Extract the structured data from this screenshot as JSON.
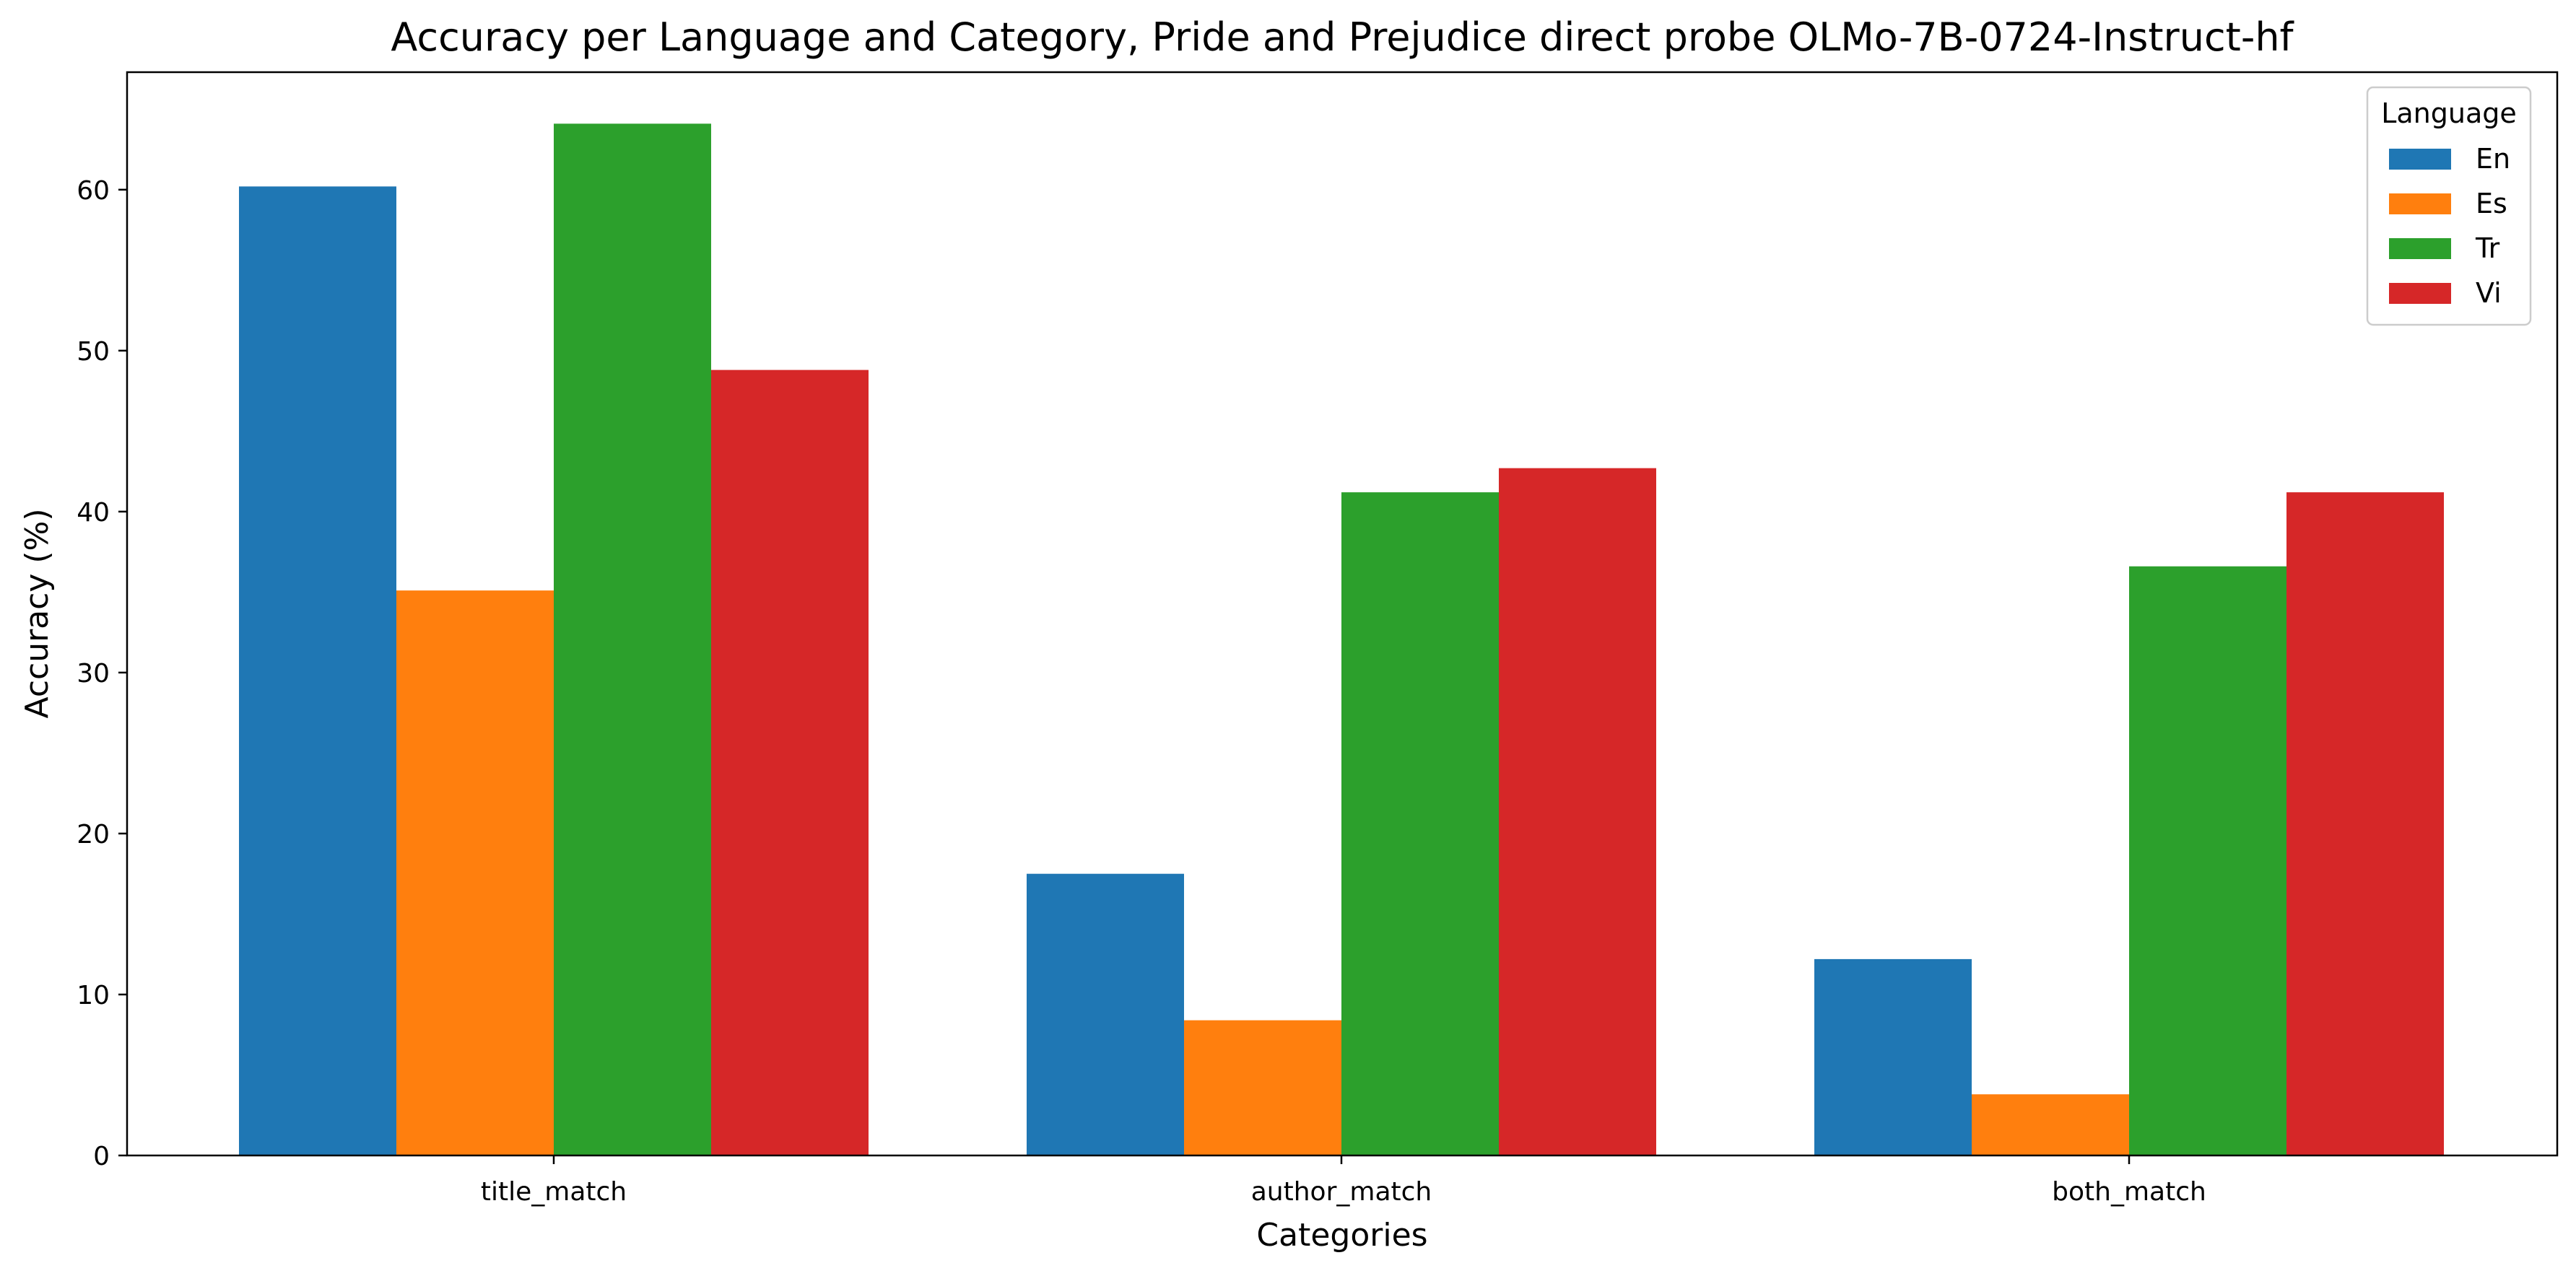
{
  "chart_data": {
    "type": "bar",
    "title": "Accuracy per Language and Category, Pride and Prejudice direct probe OLMo-7B-0724-Instruct-hf",
    "xlabel": "Categories",
    "ylabel": "Accuracy (%)",
    "categories": [
      "title_match",
      "author_match",
      "both_match"
    ],
    "ylim": [
      0,
      67.3
    ],
    "yticks": [
      0,
      10,
      20,
      30,
      40,
      50,
      60
    ],
    "grid": false,
    "legend": {
      "title": "Language",
      "position": "top-right"
    },
    "series": [
      {
        "name": "En",
        "color": "#1f77b4",
        "values": [
          60.2,
          17.5,
          12.2
        ]
      },
      {
        "name": "Es",
        "color": "#ff7f0e",
        "values": [
          35.1,
          8.4,
          3.8
        ]
      },
      {
        "name": "Tr",
        "color": "#2ca02c",
        "values": [
          64.1,
          41.2,
          36.6
        ]
      },
      {
        "name": "Vi",
        "color": "#d62728",
        "values": [
          48.8,
          42.7,
          41.2
        ]
      }
    ]
  }
}
